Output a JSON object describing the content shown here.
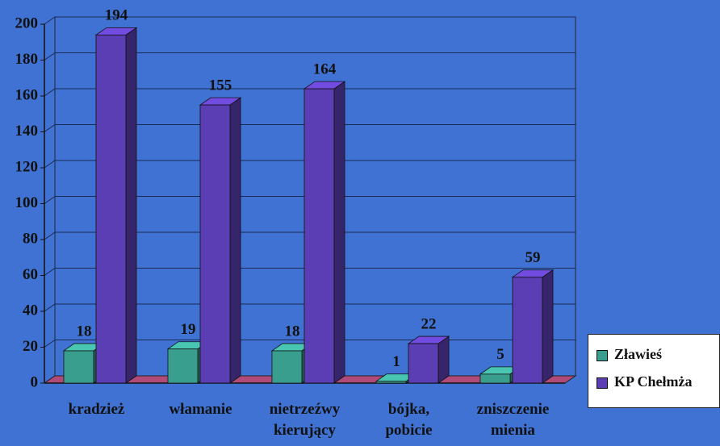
{
  "chart_data": {
    "type": "bar3d",
    "categories": [
      "kradzież",
      "włamanie",
      "nietrzeźwy kierujący",
      "bójka, pobicie",
      "zniszczenie mienia"
    ],
    "series": [
      {
        "name": "Zławieś",
        "color": "#3a9e8e",
        "values": [
          18,
          19,
          18,
          1,
          5
        ]
      },
      {
        "name": "KP Chełmża",
        "color": "#5b3db4",
        "values": [
          194,
          155,
          164,
          22,
          59
        ]
      }
    ],
    "ylim": [
      0,
      200
    ],
    "yticks": [
      0,
      20,
      40,
      60,
      80,
      100,
      120,
      140,
      160,
      180,
      200
    ],
    "grid": true,
    "legend": "right"
  }
}
